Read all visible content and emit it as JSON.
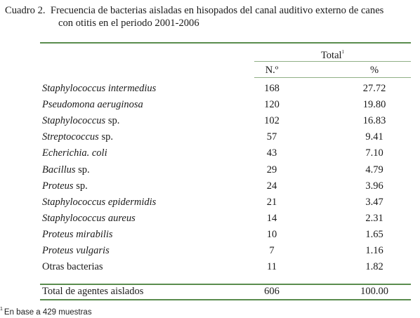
{
  "caption": {
    "label": "Cuadro 2.",
    "line1": "Frecuencia de bacterias aisladas en hisopados del canal auditivo externo de canes",
    "line2": "con otitis en el periodo 2001-2006"
  },
  "header": {
    "total": "Total",
    "total_sup": "1",
    "count": "N.º",
    "pct": "%"
  },
  "rows": [
    {
      "genus": "Staphylococcus intermedius",
      "suffix": "",
      "count": "168",
      "pct": "27.72"
    },
    {
      "genus": "Pseudomona aeruginosa",
      "suffix": "",
      "count": "120",
      "pct": "19.80"
    },
    {
      "genus": "Staphylococcus",
      "suffix": " sp.",
      "count": "102",
      "pct": "16.83"
    },
    {
      "genus": "Streptococcus",
      "suffix": " sp.",
      "count": "57",
      "pct": "9.41"
    },
    {
      "genus": "Echerichia. coli",
      "suffix": "",
      "count": "43",
      "pct": "7.10"
    },
    {
      "genus": "Bacillus",
      "suffix": " sp.",
      "count": "29",
      "pct": "4.79"
    },
    {
      "genus": "Proteus",
      "suffix": " sp.",
      "count": "24",
      "pct": "3.96"
    },
    {
      "genus": "Staphylococcus epidermidis",
      "suffix": "",
      "count": "21",
      "pct": "3.47"
    },
    {
      "genus": "Staphylococcus aureus",
      "suffix": "",
      "count": "14",
      "pct": "2.31"
    },
    {
      "genus": "Proteus mirabilis",
      "suffix": "",
      "count": "10",
      "pct": "1.65"
    },
    {
      "genus": "Proteus vulgaris",
      "suffix": "",
      "count": "7",
      "pct": "1.16"
    },
    {
      "genus": "",
      "suffix": "Otras bacterias",
      "count": "11",
      "pct": "1.82"
    }
  ],
  "total_row": {
    "label": "Total de agentes aislados",
    "count": "606",
    "pct": "100.00"
  },
  "footnote": {
    "sup": "1",
    "text": "En base a 429 muestras"
  },
  "colors": {
    "rule": "#5a8c4e"
  }
}
